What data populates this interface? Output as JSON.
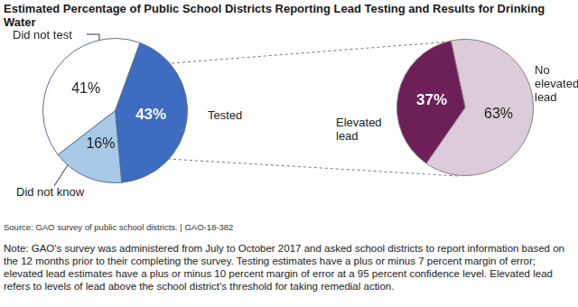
{
  "title": "Estimated Percentage of Public School Districts Reporting Lead Testing and Results for Drinking Water",
  "chart_data": [
    {
      "type": "pie",
      "categories": [
        "Tested",
        "Did not know",
        "Did not test"
      ],
      "values": [
        43,
        16,
        41
      ],
      "value_labels": [
        "43%",
        "16%",
        "41%"
      ],
      "colors": [
        "#3d6cc0",
        "#a8c9e8",
        "#ffffff"
      ],
      "data_labels": true
    },
    {
      "type": "pie",
      "categories": [
        "No elevated lead",
        "Elevated lead"
      ],
      "values": [
        63,
        37
      ],
      "value_labels": [
        "63%",
        "37%"
      ],
      "colors": [
        "#dccbd8",
        "#6d1f58"
      ],
      "data_labels": true
    }
  ],
  "source": "Source: GAO survey of public school districts.  |  GAO-18-382",
  "note": "Note: GAO's survey was administered from July to October 2017 and asked school districts to report information based on the 12 months prior to their completing the survey. Testing estimates have a plus or minus 7 percent margin of error; elevated lead estimates have a plus or minus 10 percent margin of error at a 95 percent confidence level. Elevated lead refers to levels of lead above the school district's threshold for taking remedial action."
}
